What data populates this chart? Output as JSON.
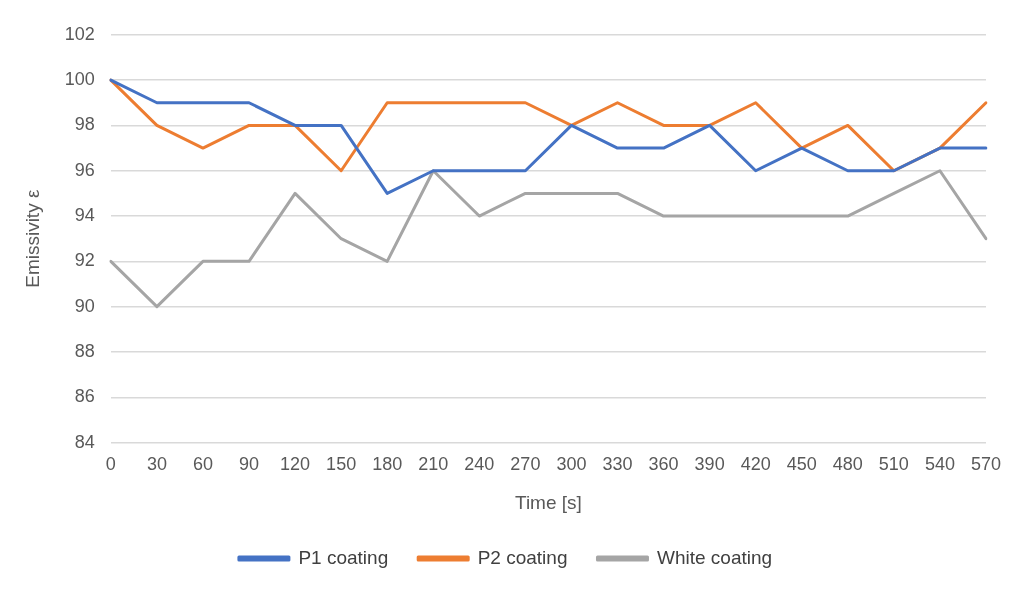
{
  "chart_data": {
    "type": "line",
    "xlabel": "Time [s]",
    "ylabel": "Emissivity ε",
    "categories": [
      "0",
      "30",
      "60",
      "90",
      "120",
      "150",
      "180",
      "210",
      "240",
      "270",
      "300",
      "330",
      "360",
      "390",
      "420",
      "450",
      "480",
      "510",
      "540",
      "570"
    ],
    "series": [
      {
        "name": "P1 coating",
        "color": "#4472c4",
        "values": [
          100,
          99,
          99,
          99,
          98,
          98,
          95,
          96,
          96,
          96,
          98,
          97,
          97,
          98,
          96,
          97,
          96,
          96,
          97,
          97
        ]
      },
      {
        "name": "P2 coating",
        "color": "#ed7d31",
        "values": [
          100,
          98,
          97,
          98,
          98,
          96,
          99,
          99,
          99,
          99,
          98,
          99,
          98,
          98,
          99,
          97,
          98,
          96,
          97,
          99
        ]
      },
      {
        "name": "White coating",
        "color": "#a5a5a5",
        "values": [
          92,
          90,
          92,
          92,
          95,
          93,
          92,
          96,
          94,
          95,
          95,
          95,
          94,
          94,
          94,
          94,
          94,
          95,
          96,
          93
        ]
      }
    ],
    "ylim": [
      84,
      102
    ],
    "yticks": [
      84,
      86,
      88,
      90,
      92,
      94,
      96,
      98,
      100,
      102
    ],
    "grid": "y",
    "legend": "bottom",
    "marker": "none",
    "line_style": "solid"
  }
}
